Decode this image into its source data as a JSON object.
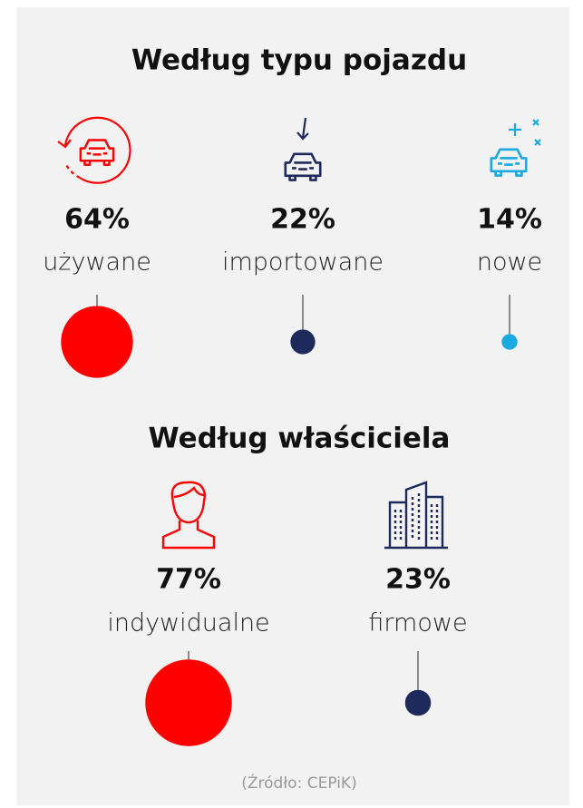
{
  "sections": [
    {
      "title": "Według typu pojazdu",
      "items": [
        {
          "value": 64,
          "value_label": "64%",
          "label": "używane",
          "color": "#ff0000"
        },
        {
          "value": 22,
          "value_label": "22%",
          "label": "importowane",
          "color": "#1f2a5c"
        },
        {
          "value": 14,
          "value_label": "14%",
          "label": "nowe",
          "color": "#1aa9e0"
        }
      ]
    },
    {
      "title": "Według właściciela",
      "items": [
        {
          "value": 77,
          "value_label": "77%",
          "label": "indywidualne",
          "color": "#ff0000"
        },
        {
          "value": 23,
          "value_label": "23%",
          "label": "firmowe",
          "color": "#1f2a5c"
        }
      ]
    }
  ],
  "source": "(Źródło: CEPiK)"
}
